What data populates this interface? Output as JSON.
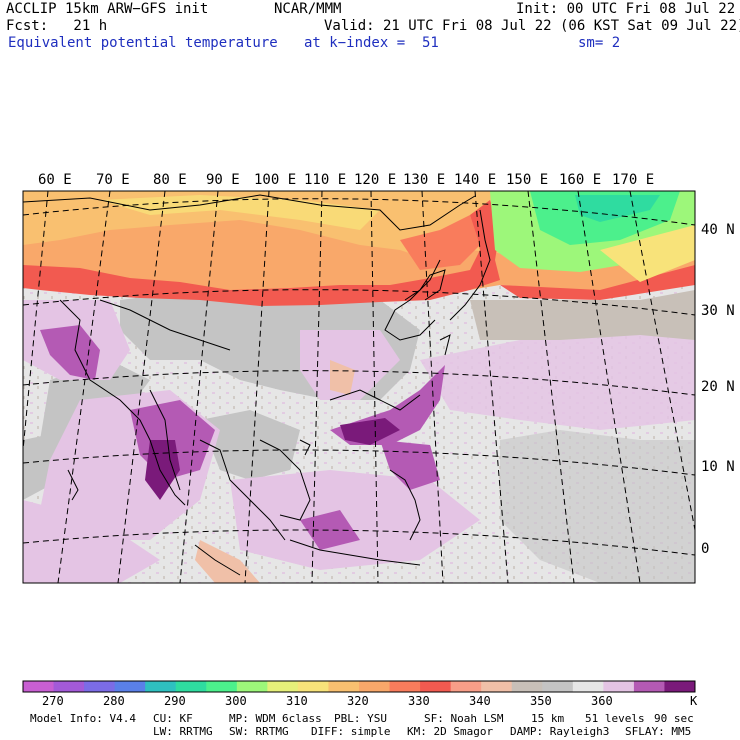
{
  "header": {
    "line1_left": "ACCLIP 15km ARW−GFS init",
    "line1_center": "NCAR/MMM",
    "line1_right": "Init: 00 UTC Fri 08 Jul 22",
    "line2_left": "Fcst:   21 h",
    "line2_right": "Valid: 21 UTC Fri 08 Jul 22 (06 KST Sat 09 Jul 22)",
    "line3_left": "Equivalent potential temperature",
    "line3_center": "at k−index =  51",
    "line3_right": "sm= 2"
  },
  "map": {
    "longitude_labels": [
      "60 E",
      "70 E",
      "80 E",
      "90 E",
      "100 E",
      "110 E",
      "120 E",
      "130 E",
      "140 E",
      "150 E",
      "160 E",
      "170 E"
    ],
    "latitude_labels": [
      "40 N",
      "30 N",
      "20 N",
      "10 N",
      "0"
    ],
    "field": "Equivalent potential temperature"
  },
  "colorbar": {
    "colors": [
      "#c85fd2",
      "#a35ad8",
      "#7b6ce6",
      "#5a80e8",
      "#2fc0c0",
      "#2fdca0",
      "#4cf08c",
      "#9df77a",
      "#e6f07a",
      "#f8e37a",
      "#f9c070",
      "#f9a86a",
      "#f97c5c",
      "#f25a50",
      "#f89e88",
      "#f0c0a8",
      "#c8c0b8",
      "#c4c4c4",
      "#e6e6e6",
      "#e4c4e4",
      "#b45ab4",
      "#7a1a7a"
    ],
    "labels": [
      "270",
      "280",
      "290",
      "300",
      "310",
      "320",
      "330",
      "340",
      "350",
      "360"
    ],
    "unit": "K"
  },
  "model_info": {
    "line1": [
      "Model Info: V4.4",
      "CU: KF",
      "MP: WDM 6class",
      "PBL: YSU",
      "SF: Noah LSM",
      "15 km",
      "51 levels",
      "90 sec"
    ],
    "line2": [
      "LW: RRTMG",
      "SW: RRTMG",
      "DIFF: simple",
      "KM: 2D Smagor",
      "DAMP: Rayleigh3",
      "SFLAY: MM5"
    ]
  }
}
